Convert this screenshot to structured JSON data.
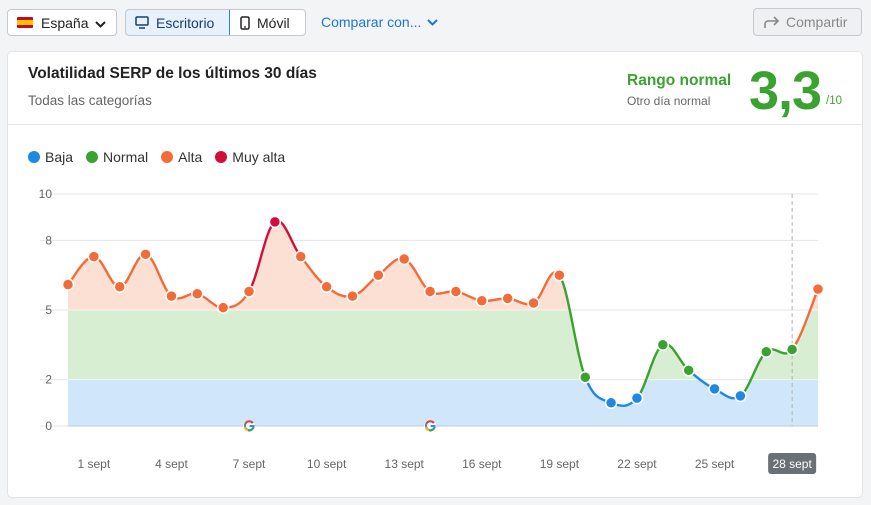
{
  "toolbar": {
    "country_label": "España",
    "desktop_label": "Escritorio",
    "mobile_label": "Móvil",
    "compare_label": "Comparar con...",
    "share_label": "Compartir"
  },
  "card": {
    "title": "Volatilidad SERP de los últimos 30 días",
    "subtitle": "Todas las categorías",
    "range_label": "Rango normal",
    "range_sub": "Otro día normal",
    "score": "3,3",
    "score_max": "/10"
  },
  "colors": {
    "low": "#1e88e5",
    "normal": "#3aa22f",
    "high": "#f26c3a",
    "very_high": "#d0103a",
    "band_low": "#cfe6fb",
    "band_normal": "#d7eed3",
    "band_high": "#fde0d4"
  },
  "chart_data": {
    "type": "line",
    "legend": [
      {
        "name": "Baja",
        "color_key": "low"
      },
      {
        "name": "Normal",
        "color_key": "normal"
      },
      {
        "name": "Alta",
        "color_key": "high"
      },
      {
        "name": "Muy alta",
        "color_key": "very_high"
      }
    ],
    "y_ticks": [
      10,
      8,
      5,
      2,
      0
    ],
    "ylim": [
      0,
      10
    ],
    "bands": [
      {
        "from": 0,
        "to": 2,
        "level": "low"
      },
      {
        "from": 2,
        "to": 5,
        "level": "normal"
      },
      {
        "from": 5,
        "to": 8,
        "level": "high"
      }
    ],
    "x_labels": [
      "1 sept",
      "4 sept",
      "7 sept",
      "10 sept",
      "13 sept",
      "16 sept",
      "19 sept",
      "22 sept",
      "25 sept",
      "28 sept"
    ],
    "x_label_days": [
      1,
      4,
      7,
      10,
      13,
      16,
      19,
      22,
      25,
      28
    ],
    "highlighted_label": "28 sept",
    "google_update_days": [
      7,
      14
    ],
    "points": [
      {
        "day": 0,
        "value": 6.1,
        "level": "high"
      },
      {
        "day": 1,
        "value": 7.3,
        "level": "high"
      },
      {
        "day": 2,
        "value": 6.0,
        "level": "high"
      },
      {
        "day": 3,
        "value": 7.4,
        "level": "high"
      },
      {
        "day": 4,
        "value": 5.6,
        "level": "high"
      },
      {
        "day": 5,
        "value": 5.7,
        "level": "high"
      },
      {
        "day": 6,
        "value": 5.1,
        "level": "high"
      },
      {
        "day": 7,
        "value": 5.8,
        "level": "high"
      },
      {
        "day": 8,
        "value": 8.8,
        "level": "very_high"
      },
      {
        "day": 9,
        "value": 7.3,
        "level": "high"
      },
      {
        "day": 10,
        "value": 6.0,
        "level": "high"
      },
      {
        "day": 11,
        "value": 5.6,
        "level": "high"
      },
      {
        "day": 12,
        "value": 6.5,
        "level": "high"
      },
      {
        "day": 13,
        "value": 7.2,
        "level": "high"
      },
      {
        "day": 14,
        "value": 5.8,
        "level": "high"
      },
      {
        "day": 15,
        "value": 5.8,
        "level": "high"
      },
      {
        "day": 16,
        "value": 5.4,
        "level": "high"
      },
      {
        "day": 17,
        "value": 5.5,
        "level": "high"
      },
      {
        "day": 18,
        "value": 5.3,
        "level": "high"
      },
      {
        "day": 19,
        "value": 6.5,
        "level": "high"
      },
      {
        "day": 20,
        "value": 2.1,
        "level": "normal"
      },
      {
        "day": 21,
        "value": 1.0,
        "level": "low"
      },
      {
        "day": 22,
        "value": 1.2,
        "level": "low"
      },
      {
        "day": 23,
        "value": 3.5,
        "level": "normal"
      },
      {
        "day": 24,
        "value": 2.4,
        "level": "normal"
      },
      {
        "day": 25,
        "value": 1.6,
        "level": "low"
      },
      {
        "day": 26,
        "value": 1.3,
        "level": "low"
      },
      {
        "day": 27,
        "value": 3.2,
        "level": "normal"
      },
      {
        "day": 28,
        "value": 3.3,
        "level": "normal"
      },
      {
        "day": 29,
        "value": 5.9,
        "level": "high"
      }
    ]
  }
}
